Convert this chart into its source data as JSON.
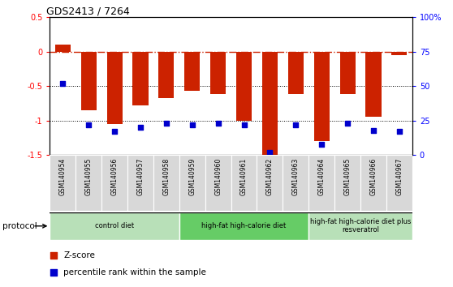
{
  "title": "GDS2413 / 7264",
  "samples": [
    "GSM140954",
    "GSM140955",
    "GSM140956",
    "GSM140957",
    "GSM140958",
    "GSM140959",
    "GSM140960",
    "GSM140961",
    "GSM140962",
    "GSM140963",
    "GSM140964",
    "GSM140965",
    "GSM140966",
    "GSM140967"
  ],
  "z_scores": [
    0.1,
    -0.85,
    -1.05,
    -0.78,
    -0.68,
    -0.57,
    -0.62,
    -1.0,
    -1.5,
    -0.62,
    -1.3,
    -0.62,
    -0.95,
    -0.05
  ],
  "percentile_ranks": [
    52,
    22,
    17,
    20,
    23,
    22,
    23,
    22,
    2,
    22,
    8,
    23,
    18,
    17
  ],
  "ylim_left": [
    -1.5,
    0.5
  ],
  "ylim_right": [
    0,
    100
  ],
  "bar_color": "#cc2200",
  "dot_color": "#0000cc",
  "hline_color": "#cc2200",
  "dotted_line_color": "#000000",
  "group_labels": [
    "control diet",
    "high-fat high-calorie diet",
    "high-fat high-calorie diet plus\nresveratrol"
  ],
  "group_starts": [
    0,
    5,
    10
  ],
  "group_ends": [
    4,
    9,
    13
  ],
  "group_colors": [
    "#b8e0b8",
    "#66cc66",
    "#b8e0b8"
  ],
  "protocol_label": "protocol",
  "legend_items": [
    {
      "color": "#cc2200",
      "label": "Z-score"
    },
    {
      "color": "#0000cc",
      "label": "percentile rank within the sample"
    }
  ]
}
